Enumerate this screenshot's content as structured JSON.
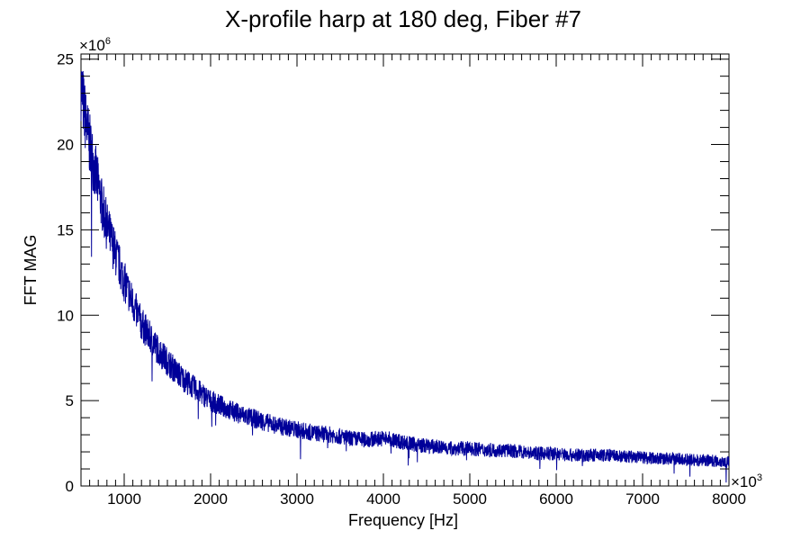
{
  "chart_data": {
    "type": "line",
    "title": "X-profile harp at 180 deg, Fiber #7",
    "xlabel": "Frequency [Hz]",
    "ylabel": "FFT MAG",
    "x_multiplier_label": "×10",
    "x_multiplier_exp": "3",
    "y_multiplier_label": "×10",
    "y_multiplier_exp": "6",
    "xlim": [
      500,
      8000
    ],
    "ylim": [
      0,
      25.3
    ],
    "x_ticks": [
      1000,
      2000,
      3000,
      4000,
      5000,
      6000,
      7000,
      8000
    ],
    "x_tick_labels": [
      "1000",
      "2000",
      "3000",
      "4000",
      "5000",
      "6000",
      "7000",
      "8000"
    ],
    "y_ticks": [
      0,
      5,
      10,
      15,
      20,
      25
    ],
    "y_tick_labels": [
      "0",
      "5",
      "10",
      "15",
      "20",
      "25"
    ],
    "grid": false,
    "line_color": "#000099",
    "series": [
      {
        "x": [
          500,
          550,
          600,
          650,
          700,
          750,
          800,
          900,
          1000,
          1100,
          1200,
          1300,
          1400,
          1500,
          1600,
          1700,
          1800,
          1900,
          2000,
          2200,
          2400,
          2600,
          2800,
          3000,
          3200,
          3400,
          3600,
          3800,
          4000,
          4200,
          4400,
          4600,
          4800,
          5000,
          5200,
          5400,
          5600,
          5800,
          6000,
          6200,
          6400,
          6600,
          6800,
          7000,
          7200,
          7400,
          7600,
          7800,
          8000
        ],
        "values": [
          23.5,
          21.5,
          20.0,
          18.8,
          17.5,
          16.3,
          15.2,
          13.6,
          12.0,
          10.7,
          9.5,
          8.7,
          7.9,
          7.3,
          6.7,
          6.2,
          5.8,
          5.4,
          5.0,
          4.5,
          4.1,
          3.8,
          3.5,
          3.3,
          3.1,
          3.0,
          2.8,
          2.7,
          2.8,
          2.6,
          2.4,
          2.3,
          2.2,
          2.2,
          2.1,
          2.1,
          2.0,
          1.9,
          1.9,
          1.8,
          1.8,
          1.8,
          1.7,
          1.7,
          1.6,
          1.6,
          1.5,
          1.5,
          1.4
        ]
      }
    ]
  }
}
